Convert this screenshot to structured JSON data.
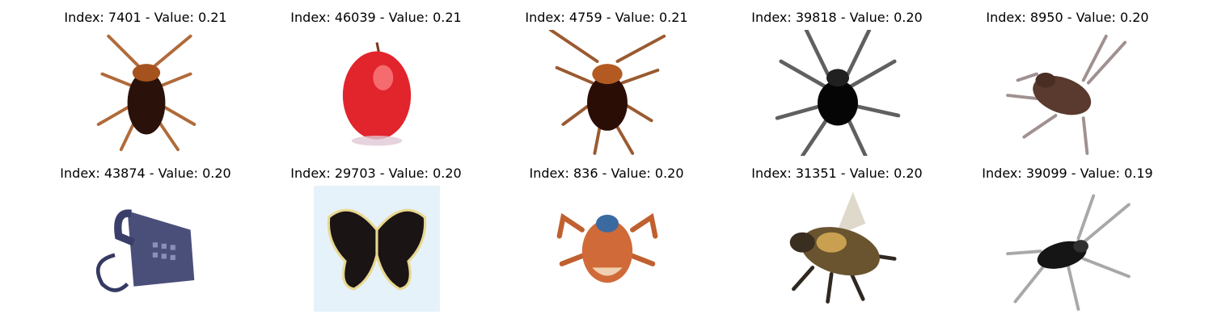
{
  "images": [
    {
      "title": "Index: 7401 - Value: 0.21",
      "subject": "cockroach"
    },
    {
      "title": "Index: 46039 - Value: 0.21",
      "subject": "apple"
    },
    {
      "title": "Index: 4759 - Value: 0.21",
      "subject": "cockroach"
    },
    {
      "title": "Index: 39818 - Value: 0.20",
      "subject": "spider"
    },
    {
      "title": "Index: 8950 - Value: 0.20",
      "subject": "cockroach"
    },
    {
      "title": "Index: 43874 - Value: 0.20",
      "subject": "telephone"
    },
    {
      "title": "Index: 29703 - Value: 0.20",
      "subject": "butterfly"
    },
    {
      "title": "Index: 836 - Value: 0.20",
      "subject": "crab"
    },
    {
      "title": "Index: 31351 - Value: 0.20",
      "subject": "bee"
    },
    {
      "title": "Index: 39099 - Value: 0.19",
      "subject": "cockroach"
    }
  ]
}
